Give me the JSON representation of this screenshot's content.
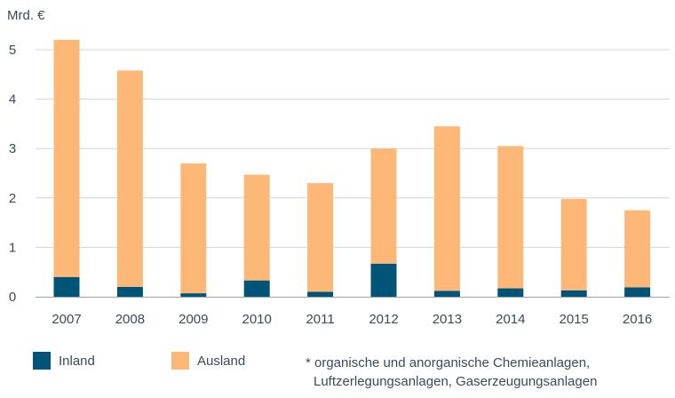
{
  "chart_data": {
    "type": "bar",
    "stacked": true,
    "unit_label": "Mrd. €",
    "categories": [
      "2007",
      "2008",
      "2009",
      "2010",
      "2011",
      "2012",
      "2013",
      "2014",
      "2015",
      "2016"
    ],
    "series": [
      {
        "name": "Inland",
        "color": "#005478",
        "values": [
          0.4,
          0.2,
          0.07,
          0.33,
          0.1,
          0.67,
          0.12,
          0.17,
          0.13,
          0.19
        ]
      },
      {
        "name": "Ausland",
        "color": "#FDB878",
        "values": [
          4.8,
          4.38,
          2.63,
          2.14,
          2.2,
          2.33,
          3.33,
          2.88,
          1.85,
          1.56
        ]
      }
    ],
    "ylim": [
      0,
      5.4
    ],
    "yticks": [
      0,
      1,
      2,
      3,
      4,
      5
    ],
    "grid": true,
    "legend_position": "bottom-left"
  },
  "legend": {
    "inland_label": "Inland",
    "ausland_label": "Ausland"
  },
  "footnote": {
    "line1": "* organische und anorganische Chemieanlagen,",
    "line2": "Luftzerlegungsanlagen, Gaserzeugungsanlagen"
  }
}
